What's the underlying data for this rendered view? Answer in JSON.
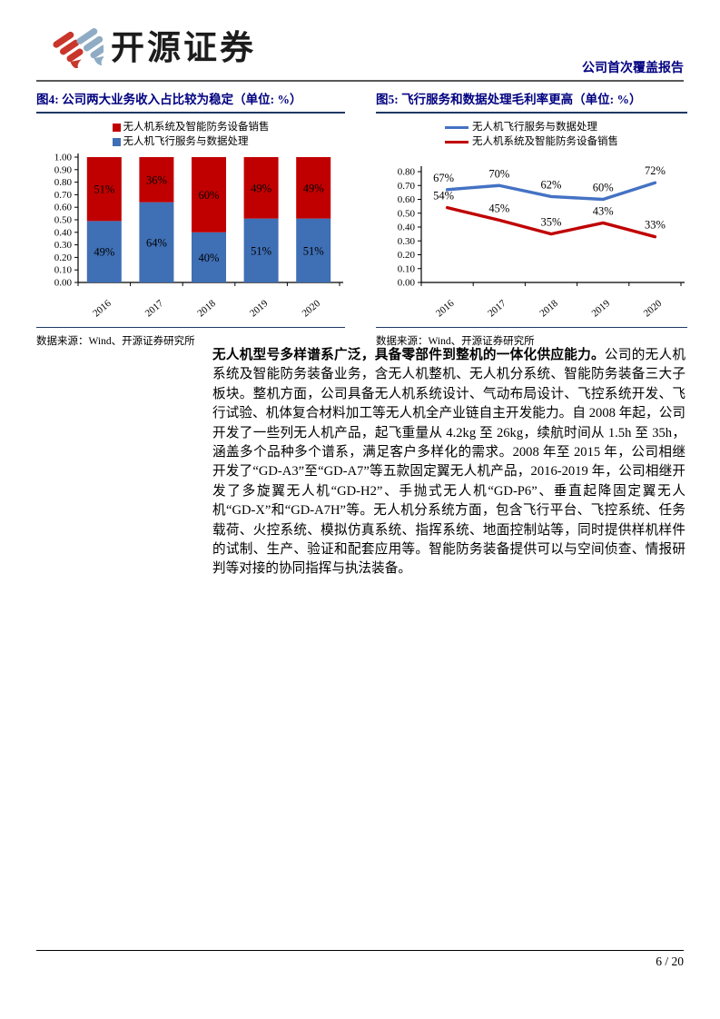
{
  "header": {
    "brand_name": "开源证券",
    "report_type": "公司首次覆盖报告",
    "brand_red": "#C9362B",
    "brand_blue": "#8FACC4"
  },
  "figures": {
    "fig4": {
      "title": "图4: 公司两大业务收入占比较为稳定（单位: %）",
      "legend": [
        {
          "label": "无人机系统及智能防务设备销售",
          "color": "#C00000"
        },
        {
          "label": "无人机飞行服务与数据处理",
          "color": "#3F6FB5"
        }
      ],
      "source": "数据来源：Wind、开源证券研究所"
    },
    "fig5": {
      "title": "图5: 飞行服务和数据处理毛利率更高（单位: %）",
      "legend": [
        {
          "label": "无人机飞行服务与数据处理",
          "color": "#4472C4"
        },
        {
          "label": "无人机系统及智能防务设备销售",
          "color": "#C00000"
        }
      ],
      "source": "数据来源：Wind、开源证券研究所"
    }
  },
  "chart_data": [
    {
      "type": "bar",
      "stacked": true,
      "title": "公司两大业务收入占比较为稳定（单位: %）",
      "categories": [
        "2016",
        "2017",
        "2018",
        "2019",
        "2020"
      ],
      "series": [
        {
          "name": "无人机飞行服务与数据处理",
          "color": "#3F6FB5",
          "values": [
            0.49,
            0.64,
            0.4,
            0.51,
            0.51
          ],
          "labels": [
            "49%",
            "64%",
            "40%",
            "51%",
            "51%"
          ]
        },
        {
          "name": "无人机系统及智能防务设备销售",
          "color": "#C00000",
          "values": [
            0.51,
            0.36,
            0.6,
            0.49,
            0.49
          ],
          "labels": [
            "51%",
            "36%",
            "60%",
            "49%",
            "49%"
          ]
        }
      ],
      "ylim": [
        0,
        1.0
      ],
      "ytick_step": 0.1,
      "legend_position": "top",
      "grid": false
    },
    {
      "type": "line",
      "title": "飞行服务和数据处理毛利率更高（单位: %）",
      "x": [
        "2016",
        "2017",
        "2018",
        "2019",
        "2020"
      ],
      "series": [
        {
          "name": "无人机飞行服务与数据处理",
          "color": "#4472C4",
          "values": [
            0.67,
            0.7,
            0.62,
            0.6,
            0.72
          ],
          "labels": [
            "67%",
            "70%",
            "62%",
            "60%",
            "72%"
          ]
        },
        {
          "name": "无人机系统及智能防务设备销售",
          "color": "#C00000",
          "values": [
            0.54,
            0.45,
            0.35,
            0.43,
            0.33
          ],
          "labels": [
            "54%",
            "45%",
            "35%",
            "43%",
            "33%"
          ]
        }
      ],
      "ylim": [
        0,
        0.8
      ],
      "ytick_step": 0.1,
      "legend_position": "top",
      "grid": false
    }
  ],
  "body": {
    "lead_bold": "无人机型号多样谱系广泛，具备零部件到整机的一体化供应能力。",
    "text": "公司的无人机系统及智能防务装备业务，含无人机整机、无人机分系统、智能防务装备三大子板块。整机方面，公司具备无人机系统设计、气动布局设计、飞控系统开发、飞行试验、机体复合材料加工等无人机全产业链自主开发能力。自 2008 年起，公司开发了一些列无人机产品，起飞重量从 4.2kg 至 26kg，续航时间从 1.5h 至 35h，涵盖多个品种多个谱系，满足客户多样化的需求。2008 年至 2015 年，公司相继开发了“GD-A3”至“GD-A7”等五款固定翼无人机产品，2016-2019 年，公司相继开发了多旋翼无人机“GD-H2”、手抛式无人机“GD-P6”、垂直起降固定翼无人机“GD-X”和“GD-A7H”等。无人机分系统方面，包含飞行平台、飞控系统、任务载荷、火控系统、模拟仿真系统、指挥系统、地面控制站等，同时提供样机样件的试制、生产、验证和配套应用等。智能防务装备提供可以与空间侦查、情报研判等对接的协同指挥与执法装备。"
  },
  "footer": {
    "page_number": "6 / 20"
  }
}
